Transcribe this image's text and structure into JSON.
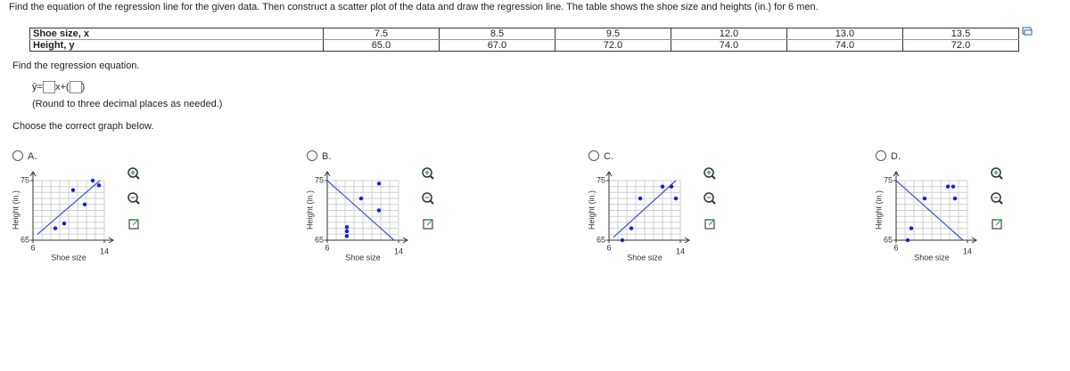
{
  "question": "Find the equation of the regression line for the given data. Then construct a scatter plot of the data and draw the regression line. The table shows the shoe size and heights (in.) for 6 men.",
  "table": {
    "rows": [
      [
        "Shoe size, x",
        "7.5",
        "8.5",
        "9.5",
        "12.0",
        "13.0",
        "13.5"
      ],
      [
        "Height, y",
        "65.0",
        "67.0",
        "72.0",
        "74.0",
        "74.0",
        "72.0"
      ]
    ]
  },
  "prompt": "Find the regression equation.",
  "equation": {
    "lhs": "ŷ=",
    "mid": "x+"
  },
  "hint": "(Round to three decimal places as needed.)",
  "choose": "Choose the correct graph below.",
  "options": [
    {
      "label": "A.",
      "graph": {
        "type": "scatter",
        "x_label": "Shoe size",
        "y_label": "Height (in.)",
        "xlim": [
          6,
          14
        ],
        "ylim": [
          65,
          75
        ],
        "xticks": [
          6,
          14
        ],
        "yticks": [
          75,
          65
        ],
        "color": "#1a1ae6",
        "line_color": "#3a55d0",
        "x": [
          8.5,
          9.5,
          10.5,
          11.8,
          12.7,
          13.4
        ],
        "y": [
          67,
          67.8,
          73.4,
          71,
          75,
          74.2
        ],
        "line": {
          "x": [
            6.5,
            13.5
          ],
          "y": [
            66,
            75
          ]
        }
      }
    },
    {
      "label": "B.",
      "graph": {
        "type": "scatter",
        "x_label": "Shoe size",
        "y_label": "Height (in.)",
        "xlim": [
          6,
          14
        ],
        "ylim": [
          65,
          75
        ],
        "xticks": [
          6,
          14
        ],
        "yticks": [
          75,
          65
        ],
        "color": "#1a1ae6",
        "line_color": "#3a55d0",
        "x": [
          8.2,
          8.2,
          8.2,
          9.8,
          11.8,
          11.8
        ],
        "y": [
          65.7,
          66.5,
          67.2,
          72,
          70,
          74.5
        ],
        "line": {
          "x": [
            6,
            13.5
          ],
          "y": [
            75,
            65
          ]
        }
      }
    },
    {
      "label": "C.",
      "graph": {
        "type": "scatter",
        "x_label": "Shoe size",
        "y_label": "Height (in.)",
        "xlim": [
          6,
          14
        ],
        "ylim": [
          65,
          75
        ],
        "xticks": [
          6,
          14
        ],
        "yticks": [
          75,
          65
        ],
        "color": "#1a1ae6",
        "line_color": "#3a55d0",
        "x": [
          7.5,
          8.5,
          9.5,
          12,
          13,
          13.5
        ],
        "y": [
          65,
          67,
          72,
          74,
          74,
          72
        ],
        "line": {
          "x": [
            6.5,
            13.5
          ],
          "y": [
            65.5,
            75
          ]
        }
      }
    },
    {
      "label": "D.",
      "graph": {
        "type": "scatter",
        "x_label": "Shoe size",
        "y_label": "Height (in.)",
        "xlim": [
          6,
          14
        ],
        "ylim": [
          65,
          75
        ],
        "xticks": [
          6,
          14
        ],
        "yticks": [
          75,
          65
        ],
        "color": "#1a1ae6",
        "line_color": "#3a55d0",
        "x": [
          7.3,
          7.7,
          9.2,
          11.8,
          12.4,
          12.6
        ],
        "y": [
          65,
          67,
          72,
          74,
          74,
          72
        ],
        "line": {
          "x": [
            6,
            13.5
          ],
          "y": [
            75,
            65
          ]
        }
      }
    }
  ]
}
